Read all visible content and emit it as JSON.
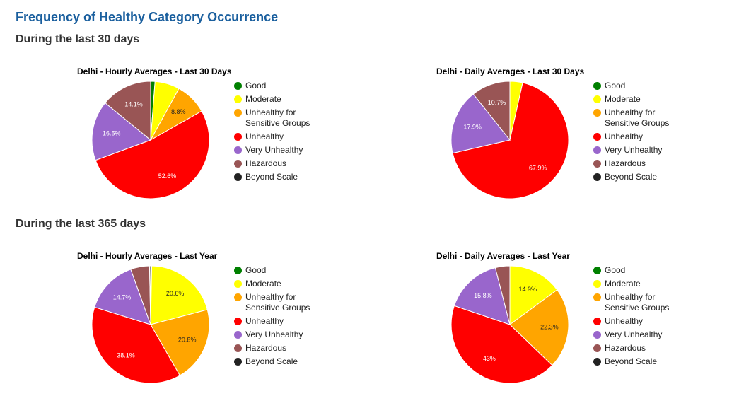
{
  "page": {
    "title": "Frequency of Healthy Category Occurrence",
    "section_30": "During the last 30 days",
    "section_365": "During the last 365 days"
  },
  "colors": {
    "good": "#008000",
    "moderate": "#ffff00",
    "unhealthy_sensitive": "#ffa500",
    "unhealthy": "#ff0000",
    "very_unhealthy": "#9966cc",
    "hazardous": "#995555",
    "beyond_scale": "#222222"
  },
  "legend": [
    {
      "key": "good",
      "label": "Good"
    },
    {
      "key": "moderate",
      "label": "Moderate"
    },
    {
      "key": "unhealthy_sensitive",
      "label": "Unhealthy for Sensitive Groups"
    },
    {
      "key": "unhealthy",
      "label": "Unhealthy"
    },
    {
      "key": "very_unhealthy",
      "label": "Very Unhealthy"
    },
    {
      "key": "hazardous",
      "label": "Hazardous"
    },
    {
      "key": "beyond_scale",
      "label": "Beyond Scale"
    }
  ],
  "chart_data": [
    {
      "type": "pie",
      "title": "Delhi - Hourly Averages - Last 30 Days",
      "slices": [
        {
          "key": "good",
          "name": "Good",
          "value": 1.2,
          "label": ""
        },
        {
          "key": "moderate",
          "name": "Moderate",
          "value": 6.8,
          "label": ""
        },
        {
          "key": "unhealthy_sensitive",
          "name": "Unhealthy for Sensitive Groups",
          "value": 8.8,
          "label": "8.8%"
        },
        {
          "key": "unhealthy",
          "name": "Unhealthy",
          "value": 52.6,
          "label": "52.6%"
        },
        {
          "key": "very_unhealthy",
          "name": "Very Unhealthy",
          "value": 16.5,
          "label": "16.5%"
        },
        {
          "key": "hazardous",
          "name": "Hazardous",
          "value": 14.1,
          "label": "14.1%"
        },
        {
          "key": "beyond_scale",
          "name": "Beyond Scale",
          "value": 0,
          "label": ""
        }
      ]
    },
    {
      "type": "pie",
      "title": "Delhi - Daily Averages - Last 30 Days",
      "slices": [
        {
          "key": "good",
          "name": "Good",
          "value": 0,
          "label": ""
        },
        {
          "key": "moderate",
          "name": "Moderate",
          "value": 3.5,
          "label": ""
        },
        {
          "key": "unhealthy_sensitive",
          "name": "Unhealthy for Sensitive Groups",
          "value": 0,
          "label": ""
        },
        {
          "key": "unhealthy",
          "name": "Unhealthy",
          "value": 67.9,
          "label": "67.9%"
        },
        {
          "key": "very_unhealthy",
          "name": "Very Unhealthy",
          "value": 17.9,
          "label": "17.9%"
        },
        {
          "key": "hazardous",
          "name": "Hazardous",
          "value": 10.7,
          "label": "10.7%"
        },
        {
          "key": "beyond_scale",
          "name": "Beyond Scale",
          "value": 0,
          "label": ""
        }
      ]
    },
    {
      "type": "pie",
      "title": "Delhi - Hourly Averages - Last Year",
      "slices": [
        {
          "key": "good",
          "name": "Good",
          "value": 0.3,
          "label": ""
        },
        {
          "key": "moderate",
          "name": "Moderate",
          "value": 20.6,
          "label": "20.6%"
        },
        {
          "key": "unhealthy_sensitive",
          "name": "Unhealthy for Sensitive Groups",
          "value": 20.8,
          "label": "20.8%"
        },
        {
          "key": "unhealthy",
          "name": "Unhealthy",
          "value": 38.1,
          "label": "38.1%"
        },
        {
          "key": "very_unhealthy",
          "name": "Very Unhealthy",
          "value": 14.7,
          "label": "14.7%"
        },
        {
          "key": "hazardous",
          "name": "Hazardous",
          "value": 5.2,
          "label": ""
        },
        {
          "key": "beyond_scale",
          "name": "Beyond Scale",
          "value": 0.3,
          "label": ""
        }
      ]
    },
    {
      "type": "pie",
      "title": "Delhi - Daily Averages - Last Year",
      "slices": [
        {
          "key": "good",
          "name": "Good",
          "value": 0,
          "label": ""
        },
        {
          "key": "moderate",
          "name": "Moderate",
          "value": 14.9,
          "label": "14.9%"
        },
        {
          "key": "unhealthy_sensitive",
          "name": "Unhealthy for Sensitive Groups",
          "value": 22.3,
          "label": "22.3%"
        },
        {
          "key": "unhealthy",
          "name": "Unhealthy",
          "value": 43,
          "label": "43%"
        },
        {
          "key": "very_unhealthy",
          "name": "Very Unhealthy",
          "value": 15.8,
          "label": "15.8%"
        },
        {
          "key": "hazardous",
          "name": "Hazardous",
          "value": 4,
          "label": ""
        },
        {
          "key": "beyond_scale",
          "name": "Beyond Scale",
          "value": 0,
          "label": ""
        }
      ]
    }
  ]
}
